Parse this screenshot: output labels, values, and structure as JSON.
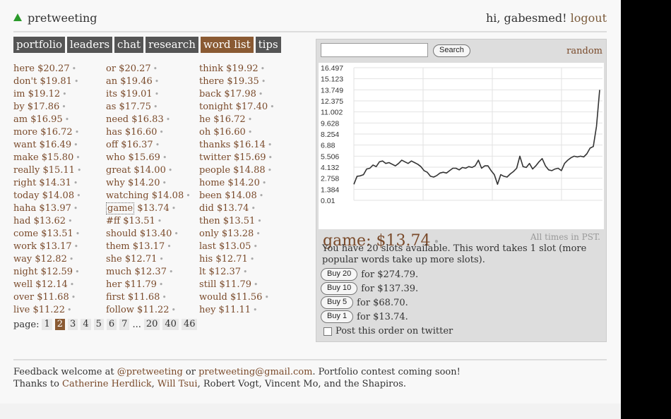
{
  "brand": "pretweeting",
  "user": {
    "greeting": "hi, gabesmed!",
    "logout": "logout"
  },
  "nav": [
    "portfolio",
    "leaders",
    "chat",
    "research",
    "word list",
    "tips"
  ],
  "nav_active": "word list",
  "words": [
    [
      {
        "w": "here",
        "p": "$20.27"
      },
      {
        "w": "don't",
        "p": "$19.81"
      },
      {
        "w": "im",
        "p": "$19.12"
      },
      {
        "w": "by",
        "p": "$17.86"
      },
      {
        "w": "am",
        "p": "$16.95"
      },
      {
        "w": "more",
        "p": "$16.72"
      },
      {
        "w": "want",
        "p": "$16.49"
      },
      {
        "w": "make",
        "p": "$15.80"
      },
      {
        "w": "really",
        "p": "$15.11"
      },
      {
        "w": "right",
        "p": "$14.31"
      },
      {
        "w": "today",
        "p": "$14.08"
      },
      {
        "w": "haha",
        "p": "$13.97"
      },
      {
        "w": "had",
        "p": "$13.62"
      },
      {
        "w": "come",
        "p": "$13.51"
      },
      {
        "w": "work",
        "p": "$13.17"
      },
      {
        "w": "way",
        "p": "$12.82"
      },
      {
        "w": "night",
        "p": "$12.59"
      },
      {
        "w": "well",
        "p": "$12.14"
      },
      {
        "w": "over",
        "p": "$11.68"
      },
      {
        "w": "live",
        "p": "$11.22"
      }
    ],
    [
      {
        "w": "or",
        "p": "$20.27"
      },
      {
        "w": "an",
        "p": "$19.46"
      },
      {
        "w": "its",
        "p": "$19.01"
      },
      {
        "w": "as",
        "p": "$17.75"
      },
      {
        "w": "need",
        "p": "$16.83"
      },
      {
        "w": "has",
        "p": "$16.60"
      },
      {
        "w": "off",
        "p": "$16.37"
      },
      {
        "w": "who",
        "p": "$15.69"
      },
      {
        "w": "great",
        "p": "$14.00"
      },
      {
        "w": "why",
        "p": "$14.20"
      },
      {
        "w": "watching",
        "p": "$14.08"
      },
      {
        "w": "game",
        "p": "$13.74"
      },
      {
        "w": "#ff",
        "p": "$13.51"
      },
      {
        "w": "should",
        "p": "$13.40"
      },
      {
        "w": "them",
        "p": "$13.17"
      },
      {
        "w": "she",
        "p": "$12.71"
      },
      {
        "w": "much",
        "p": "$12.37"
      },
      {
        "w": "her",
        "p": "$11.79"
      },
      {
        "w": "first",
        "p": "$11.68"
      },
      {
        "w": "follow",
        "p": "$11.22"
      }
    ],
    [
      {
        "w": "think",
        "p": "$19.92"
      },
      {
        "w": "there",
        "p": "$19.35"
      },
      {
        "w": "back",
        "p": "$17.98"
      },
      {
        "w": "tonight",
        "p": "$17.40"
      },
      {
        "w": "he",
        "p": "$16.72"
      },
      {
        "w": "oh",
        "p": "$16.60"
      },
      {
        "w": "thanks",
        "p": "$16.14"
      },
      {
        "w": "twitter",
        "p": "$15.69"
      },
      {
        "w": "people",
        "p": "$14.88"
      },
      {
        "w": "home",
        "p": "$14.20"
      },
      {
        "w": "been",
        "p": "$14.08"
      },
      {
        "w": "did",
        "p": "$13.74"
      },
      {
        "w": "then",
        "p": "$13.51"
      },
      {
        "w": "only",
        "p": "$13.28"
      },
      {
        "w": "last",
        "p": "$13.05"
      },
      {
        "w": "his",
        "p": "$12.71"
      },
      {
        "w": "lt",
        "p": "$12.37"
      },
      {
        "w": "still",
        "p": "$11.79"
      },
      {
        "w": "would",
        "p": "$11.56"
      },
      {
        "w": "hey",
        "p": "$11.11"
      }
    ]
  ],
  "selected_word": "game",
  "pager": {
    "label": "page:",
    "pages": [
      "1",
      "2",
      "3",
      "4",
      "5",
      "6",
      "7",
      "...",
      "20",
      "40",
      "46"
    ],
    "current": "2"
  },
  "search": {
    "button": "Search",
    "random": "random"
  },
  "chart_data": {
    "type": "line",
    "y_ticks": [
      "16.497",
      "15.123",
      "13.749",
      "12.375",
      "11.002",
      "9.628",
      "8.254",
      "6.88",
      "5.506",
      "4.132",
      "2.758",
      "1.384",
      "0.01"
    ],
    "ylim": [
      0.01,
      16.497
    ],
    "grid": true,
    "color": "#333333",
    "values": [
      2.0,
      3.0,
      3.05,
      3.2,
      3.9,
      4.0,
      4.4,
      4.2,
      4.8,
      4.9,
      4.6,
      4.7,
      4.5,
      4.3,
      4.6,
      5.0,
      4.8,
      4.6,
      4.9,
      4.7,
      4.5,
      4.2,
      3.7,
      3.5,
      3.0,
      2.9,
      3.1,
      3.4,
      3.5,
      3.4,
      3.7,
      4.0,
      4.0,
      3.8,
      4.1,
      4.0,
      4.2,
      4.1,
      4.3,
      5.0,
      4.0,
      4.3,
      4.3,
      3.7,
      3.2,
      2.0,
      3.2,
      3.0,
      2.9,
      3.3,
      3.6,
      4.0,
      5.5,
      4.2,
      4.1,
      4.6,
      3.9,
      4.3,
      4.8,
      5.2,
      4.3,
      3.8,
      3.7,
      3.9,
      4.0,
      3.7,
      4.6,
      5.0,
      5.3,
      5.5,
      5.4,
      5.5,
      5.4,
      5.8,
      6.5,
      6.7,
      9.2,
      13.74
    ]
  },
  "current": {
    "word": "game:",
    "price": "$13.74",
    "pst": "All times in PST."
  },
  "buy": {
    "info": "You have 20 slots available. This word takes 1 slot (more popular words take up more slots).",
    "options": [
      {
        "label": "Buy 20",
        "text": "for $274.79."
      },
      {
        "label": "Buy 10",
        "text": "for $137.39."
      },
      {
        "label": "Buy 5",
        "text": "for $68.70."
      },
      {
        "label": "Buy 1",
        "text": "for $13.74."
      }
    ],
    "twitter": "Post this order on twitter"
  },
  "footer": {
    "l1_a": "Feedback welcome at ",
    "handle": "@pretweeting",
    "l1_b": " or ",
    "email": "pretweeting@gmail.com",
    "l1_c": ". Portfolio contest coming soon!",
    "l2_a": "Thanks to ",
    "person1": "Catherine Herdlick",
    "l2_b": ", ",
    "person2": "Will Tsui",
    "l2_c": ", Robert Vogt, Vincent Mo, and the Shapiros."
  }
}
